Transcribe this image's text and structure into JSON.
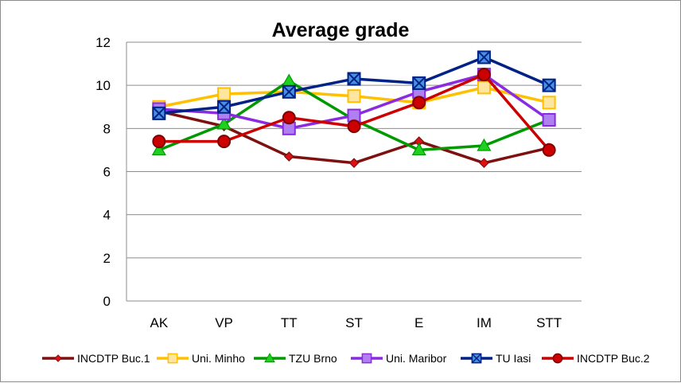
{
  "chart_data": {
    "type": "line",
    "title": "Average grade",
    "xlabel": "",
    "ylabel": "",
    "categories": [
      "AK",
      "VP",
      "TT",
      "ST",
      "E",
      "IM",
      "STT"
    ],
    "ylim": [
      0,
      12
    ],
    "yticks": [
      0,
      2,
      4,
      6,
      8,
      10,
      12
    ],
    "grid": true,
    "legend_position": "bottom",
    "series": [
      {
        "name": "INCDTP Buc.1",
        "color": "#7f1010",
        "marker": "diamond",
        "values": [
          8.8,
          8.1,
          6.7,
          6.4,
          7.4,
          6.4,
          7.1
        ]
      },
      {
        "name": "Uni. Minho",
        "color": "#ffc000",
        "marker": "square",
        "values": [
          9.0,
          9.6,
          9.7,
          9.5,
          9.2,
          9.9,
          9.2
        ]
      },
      {
        "name": "TZU Brno",
        "color": "#009a00",
        "marker": "triangle",
        "values": [
          7.0,
          8.2,
          10.2,
          8.4,
          7.0,
          7.2,
          8.4
        ]
      },
      {
        "name": "Uni. Maribor",
        "color": "#8a2be2",
        "marker": "square",
        "values": [
          8.9,
          8.7,
          8.0,
          8.6,
          9.7,
          10.5,
          8.4
        ]
      },
      {
        "name": "TU Iasi",
        "color": "#002288",
        "marker": "x-square",
        "values": [
          8.7,
          9.0,
          9.7,
          10.3,
          10.1,
          11.3,
          10.0
        ]
      },
      {
        "name": "INCDTP Buc.2",
        "color": "#cc0000",
        "marker": "circle",
        "values": [
          7.4,
          7.4,
          8.5,
          8.1,
          9.2,
          10.5,
          7.0
        ]
      }
    ]
  }
}
